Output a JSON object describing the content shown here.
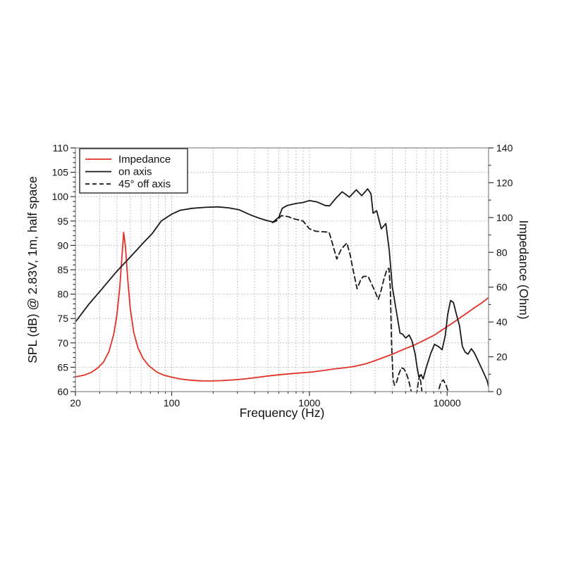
{
  "chart_data": {
    "type": "line",
    "title": "",
    "x_axis": {
      "label": "Frequency (Hz)",
      "scale": "log",
      "min": 20,
      "max": 20000,
      "tick_values": [
        20,
        100,
        1000,
        10000
      ],
      "tick_labels": [
        "20",
        "100",
        "1000",
        "10000"
      ],
      "minor_ticks": "log sub-decades (30..90, 200..900, 2000..9000)"
    },
    "y_left": {
      "label": "SPL (dB) @ 2.83V, 1m, half space",
      "min": 60,
      "max": 110,
      "tick_step": 5,
      "minor_step": 1,
      "tick_labels": [
        "60",
        "65",
        "70",
        "75",
        "80",
        "85",
        "90",
        "95",
        "100",
        "105",
        "110"
      ]
    },
    "y_right": {
      "label": "Impedance (Ohm)",
      "min": 0,
      "max": 140,
      "tick_step": 20,
      "minor_step": 10,
      "tick_labels": [
        "0",
        "20",
        "40",
        "60",
        "80",
        "100",
        "120",
        "140"
      ]
    },
    "grid": {
      "style": "dotted",
      "color": "#b4b4b4",
      "horizontal_at": [
        65,
        70,
        75,
        80,
        85,
        90,
        95,
        100,
        105
      ],
      "vertical": "every log minor and major line"
    },
    "axis_color": "#8f8f8f",
    "tick_color": "#333333",
    "legend": {
      "position": "top-left",
      "entries": [
        {
          "label": "Impedance",
          "color": "#e13127",
          "dash": "solid"
        },
        {
          "label": "on axis",
          "color": "#1a1a1a",
          "dash": "solid"
        },
        {
          "label": "45° off axis",
          "color": "#1a1a1a",
          "dash": "dashed"
        }
      ]
    },
    "series": [
      {
        "name": "Impedance",
        "axis": "right",
        "unit": "Ohm",
        "color": "#e13127",
        "style": "solid",
        "points": [
          [
            20,
            8.5
          ],
          [
            23,
            9.4
          ],
          [
            26,
            11
          ],
          [
            29,
            13.5
          ],
          [
            32,
            17
          ],
          [
            35,
            23
          ],
          [
            38,
            33
          ],
          [
            40,
            44
          ],
          [
            42,
            60
          ],
          [
            43.5,
            77
          ],
          [
            44.8,
            91.5
          ],
          [
            46.2,
            83
          ],
          [
            48,
            64
          ],
          [
            50,
            48
          ],
          [
            53,
            34
          ],
          [
            57,
            25
          ],
          [
            62,
            19
          ],
          [
            68,
            15
          ],
          [
            78,
            11.2
          ],
          [
            88,
            9.4
          ],
          [
            100,
            8.3
          ],
          [
            115,
            7.3
          ],
          [
            135,
            6.6
          ],
          [
            160,
            6.2
          ],
          [
            190,
            6.1
          ],
          [
            230,
            6.3
          ],
          [
            280,
            6.7
          ],
          [
            340,
            7.3
          ],
          [
            410,
            8.1
          ],
          [
            500,
            9.0
          ],
          [
            620,
            9.8
          ],
          [
            760,
            10.4
          ],
          [
            900,
            10.9
          ],
          [
            1050,
            11.3
          ],
          [
            1250,
            12.1
          ],
          [
            1500,
            13.0
          ],
          [
            1800,
            13.7
          ],
          [
            2100,
            14.4
          ],
          [
            2600,
            16.1
          ],
          [
            3200,
            18.6
          ],
          [
            4000,
            21.5
          ],
          [
            5000,
            24.8
          ],
          [
            5700,
            26.5
          ],
          [
            7000,
            30.0
          ],
          [
            8000,
            32.3
          ],
          [
            9400,
            35.9
          ],
          [
            11000,
            39.5
          ],
          [
            13000,
            43.5
          ],
          [
            16000,
            48.5
          ],
          [
            18000,
            51.2
          ],
          [
            20000,
            54.0
          ]
        ]
      },
      {
        "name": "on axis",
        "axis": "left",
        "unit": "dB",
        "color": "#1a1a1a",
        "style": "solid",
        "points": [
          [
            20,
            74.3
          ],
          [
            25,
            77.9
          ],
          [
            31,
            81.0
          ],
          [
            40,
            84.7
          ],
          [
            50,
            87.6
          ],
          [
            63,
            90.7
          ],
          [
            72,
            92.4
          ],
          [
            84,
            95.0
          ],
          [
            100,
            96.4
          ],
          [
            115,
            97.2
          ],
          [
            140,
            97.6
          ],
          [
            175,
            97.8
          ],
          [
            215,
            97.9
          ],
          [
            260,
            97.7
          ],
          [
            310,
            97.3
          ],
          [
            370,
            96.3
          ],
          [
            430,
            95.6
          ],
          [
            490,
            95.1
          ],
          [
            545,
            94.8
          ],
          [
            600,
            95.8
          ],
          [
            635,
            97.6
          ],
          [
            690,
            98.2
          ],
          [
            800,
            98.6
          ],
          [
            900,
            98.8
          ],
          [
            1000,
            99.2
          ],
          [
            1140,
            98.9
          ],
          [
            1300,
            98.2
          ],
          [
            1400,
            98.1
          ],
          [
            1550,
            99.6
          ],
          [
            1730,
            101.0
          ],
          [
            1950,
            99.9
          ],
          [
            2190,
            101.4
          ],
          [
            2400,
            100.2
          ],
          [
            2650,
            101.6
          ],
          [
            2800,
            100.6
          ],
          [
            2900,
            96.6
          ],
          [
            3080,
            97.1
          ],
          [
            3330,
            93.4
          ],
          [
            3590,
            94.5
          ],
          [
            3800,
            89.0
          ],
          [
            4000,
            81.5
          ],
          [
            4250,
            77.0
          ],
          [
            4550,
            72.0
          ],
          [
            4750,
            71.8
          ],
          [
            5000,
            71.0
          ],
          [
            5300,
            71.6
          ],
          [
            5560,
            70.4
          ],
          [
            5860,
            67.7
          ],
          [
            6050,
            65.0
          ],
          [
            6250,
            62.9
          ],
          [
            6470,
            63.5
          ],
          [
            6700,
            62.6
          ],
          [
            7030,
            64.8
          ],
          [
            7600,
            67.8
          ],
          [
            8100,
            69.7
          ],
          [
            8700,
            69.2
          ],
          [
            9200,
            68.6
          ],
          [
            9700,
            71.5
          ],
          [
            10100,
            75.8
          ],
          [
            10600,
            78.7
          ],
          [
            11100,
            78.3
          ],
          [
            11700,
            75.8
          ],
          [
            12300,
            73.5
          ],
          [
            12900,
            69.3
          ],
          [
            13500,
            68.1
          ],
          [
            14200,
            67.7
          ],
          [
            15000,
            68.8
          ],
          [
            15800,
            67.9
          ],
          [
            16800,
            66.3
          ],
          [
            17800,
            64.8
          ],
          [
            18800,
            63.3
          ],
          [
            19500,
            62.3
          ],
          [
            20000,
            61.0
          ]
        ]
      },
      {
        "name": "45° off axis",
        "axis": "left",
        "unit": "dB",
        "color": "#1a1a1a",
        "style": "dashed",
        "points": [
          [
            540,
            94.7
          ],
          [
            575,
            95.0
          ],
          [
            625,
            96.1
          ],
          [
            700,
            95.9
          ],
          [
            785,
            95.4
          ],
          [
            900,
            95.0
          ],
          [
            1000,
            93.4
          ],
          [
            1110,
            92.9
          ],
          [
            1250,
            92.8
          ],
          [
            1390,
            92.7
          ],
          [
            1490,
            89.8
          ],
          [
            1580,
            87.2
          ],
          [
            1700,
            89.2
          ],
          [
            1870,
            90.5
          ],
          [
            1980,
            88.0
          ],
          [
            2060,
            85.4
          ],
          [
            2220,
            81.1
          ],
          [
            2350,
            82.8
          ],
          [
            2450,
            83.6
          ],
          [
            2660,
            83.7
          ],
          [
            2860,
            81.8
          ],
          [
            3000,
            80.5
          ],
          [
            3160,
            78.9
          ],
          [
            3300,
            80.5
          ],
          [
            3470,
            83.0
          ],
          [
            3650,
            85.0
          ],
          [
            3780,
            85.3
          ],
          [
            3870,
            81.0
          ],
          [
            3950,
            70.0
          ],
          [
            4050,
            62.5
          ],
          [
            4150,
            61.3
          ],
          [
            4300,
            62.0
          ],
          [
            4450,
            63.5
          ],
          [
            4650,
            64.9
          ],
          [
            4850,
            64.7
          ],
          [
            5050,
            63.8
          ],
          [
            5250,
            62.4
          ],
          [
            5450,
            60.4
          ],
          [
            5600,
            58.5
          ],
          [
            5900,
            58.5
          ],
          [
            6050,
            60.0
          ],
          [
            6200,
            62.2
          ],
          [
            6320,
            63.3
          ],
          [
            6450,
            61.8
          ],
          [
            6600,
            59.5
          ],
          [
            6800,
            57.5
          ],
          [
            7600,
            57.5
          ],
          [
            8300,
            58.8
          ],
          [
            8700,
            60.4
          ],
          [
            9000,
            61.9
          ],
          [
            9400,
            62.4
          ],
          [
            9800,
            61.4
          ],
          [
            10100,
            60.3
          ],
          [
            10400,
            58.5
          ]
        ]
      }
    ]
  }
}
